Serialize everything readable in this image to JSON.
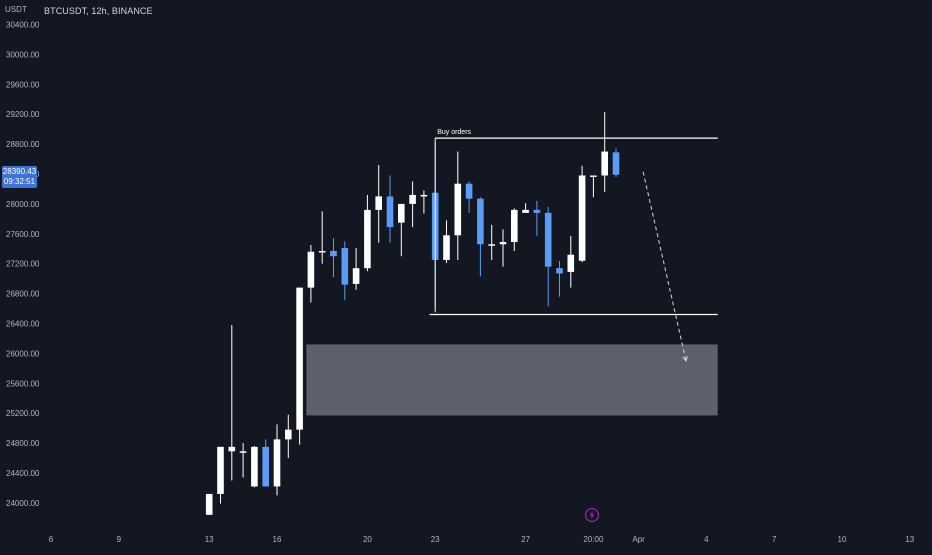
{
  "header": {
    "symbol": "BTCUSDT, 12h, BINANCE",
    "currency": "USDT"
  },
  "price_badge": {
    "price": "28390.43",
    "countdown": "09:32:51"
  },
  "colors": {
    "background": "#131722",
    "up_candle": "#ffffff",
    "down_candle": "#5b9cf6",
    "zone": "#787b86",
    "level_line": "#ffffff",
    "badge": "#3f74d6",
    "event_icon": "#9c27b0"
  },
  "icons": {
    "event": "lightning-icon"
  },
  "chart_data": {
    "type": "candlestick",
    "title": "BTCUSDT, 12h, BINANCE",
    "ylabel": "USDT",
    "ylim": [
      23600,
      30600
    ],
    "y_ticks": [
      "24000.00",
      "24400.00",
      "24800.00",
      "25200.00",
      "25600.00",
      "26000.00",
      "26400.00",
      "26800.00",
      "27200.00",
      "27600.00",
      "28000.00",
      "28400.00",
      "28800.00",
      "29200.00",
      "29600.00",
      "30000.00",
      "30400.00"
    ],
    "x_ticks": [
      "6",
      "9",
      "13",
      "16",
      "20",
      "23",
      "27",
      "20:00",
      "Apr",
      "4",
      "7",
      "10",
      "13"
    ],
    "x_tick_positions": [
      0,
      3,
      7,
      10,
      14,
      17,
      21,
      24,
      26,
      29,
      32,
      35,
      38
    ],
    "candle_x_start": 7,
    "candle_x_step": 0.5,
    "candles": [
      {
        "o": 23840,
        "h": 24120,
        "l": 23840,
        "c": 24120
      },
      {
        "o": 24120,
        "h": 24750,
        "l": 23990,
        "c": 24750
      },
      {
        "o": 24690,
        "h": 26380,
        "l": 24300,
        "c": 24750
      },
      {
        "o": 24690,
        "h": 24800,
        "l": 24340,
        "c": 24690
      },
      {
        "o": 24220,
        "h": 24760,
        "l": 24210,
        "c": 24750
      },
      {
        "o": 24750,
        "h": 24850,
        "l": 24220,
        "c": 24220
      },
      {
        "o": 24220,
        "h": 25050,
        "l": 24100,
        "c": 24850
      },
      {
        "o": 24850,
        "h": 25180,
        "l": 24600,
        "c": 24980
      },
      {
        "o": 24980,
        "h": 26850,
        "l": 24780,
        "c": 26880
      },
      {
        "o": 26880,
        "h": 27450,
        "l": 26680,
        "c": 27360
      },
      {
        "o": 27360,
        "h": 27900,
        "l": 27200,
        "c": 27370
      },
      {
        "o": 27370,
        "h": 27540,
        "l": 27020,
        "c": 27300
      },
      {
        "o": 27410,
        "h": 27500,
        "l": 26710,
        "c": 26920
      },
      {
        "o": 26930,
        "h": 27410,
        "l": 26850,
        "c": 27140
      },
      {
        "o": 27140,
        "h": 28120,
        "l": 27100,
        "c": 27920
      },
      {
        "o": 27920,
        "h": 28520,
        "l": 27480,
        "c": 28100
      },
      {
        "o": 28100,
        "h": 28380,
        "l": 27480,
        "c": 27690
      },
      {
        "o": 27750,
        "h": 27960,
        "l": 27300,
        "c": 28000
      },
      {
        "o": 28000,
        "h": 28300,
        "l": 27690,
        "c": 28120
      },
      {
        "o": 28100,
        "h": 28180,
        "l": 27870,
        "c": 28120
      },
      {
        "o": 28150,
        "h": 28820,
        "l": 26620,
        "c": 27250
      },
      {
        "o": 27250,
        "h": 27780,
        "l": 27210,
        "c": 27580
      },
      {
        "o": 27580,
        "h": 28700,
        "l": 27250,
        "c": 28270
      },
      {
        "o": 28270,
        "h": 28300,
        "l": 27880,
        "c": 28070
      },
      {
        "o": 28070,
        "h": 28090,
        "l": 27030,
        "c": 27460
      },
      {
        "o": 27460,
        "h": 27720,
        "l": 27250,
        "c": 27460
      },
      {
        "o": 27460,
        "h": 27660,
        "l": 27160,
        "c": 27490
      },
      {
        "o": 27490,
        "h": 27940,
        "l": 27370,
        "c": 27920
      },
      {
        "o": 27880,
        "h": 28010,
        "l": 27890,
        "c": 27920
      },
      {
        "o": 27920,
        "h": 28040,
        "l": 27570,
        "c": 27880
      },
      {
        "o": 27880,
        "h": 27960,
        "l": 26630,
        "c": 27160
      },
      {
        "o": 27140,
        "h": 27240,
        "l": 26760,
        "c": 27070
      },
      {
        "o": 27090,
        "h": 27570,
        "l": 26880,
        "c": 27320
      },
      {
        "o": 27240,
        "h": 28510,
        "l": 27220,
        "c": 28380
      },
      {
        "o": 28360,
        "h": 28380,
        "l": 28090,
        "c": 28380
      },
      {
        "o": 28380,
        "h": 29230,
        "l": 28160,
        "c": 28700
      },
      {
        "o": 28690,
        "h": 28740,
        "l": 28360,
        "c": 28390
      }
    ],
    "buy_orders_level": {
      "price": 28880,
      "label": "Buy orders",
      "from_x": 17,
      "to_x": 29.5
    },
    "support_level": {
      "price": 26520,
      "from_x": 16.75,
      "to_x": 29.5
    },
    "demand_zone": {
      "top": 26120,
      "bottom": 25170,
      "from_x": 11.3,
      "to_x": 29.5
    },
    "projection": {
      "from_x": 26.2,
      "from_price": 28430,
      "to_x": 28.1,
      "to_price": 25900
    }
  }
}
